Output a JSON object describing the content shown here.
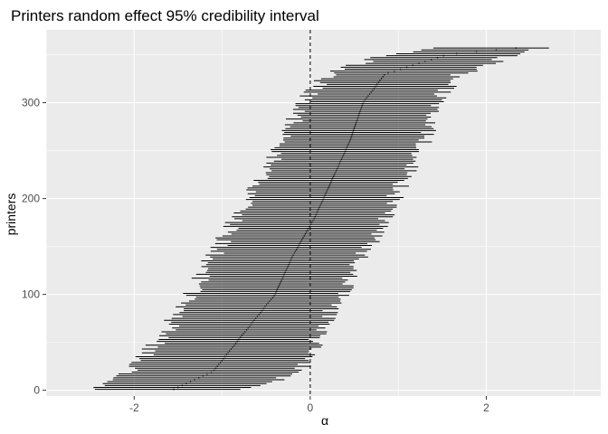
{
  "chart_data": {
    "type": "interval",
    "title": "Printers random effect 95% credibility interval",
    "xlabel": "α",
    "ylabel": "printers",
    "xlim": [
      -3.0,
      3.3
    ],
    "ylim": [
      -6,
      376
    ],
    "x_ticks": [
      -2,
      0,
      2
    ],
    "x_tick_labels": [
      "-2",
      "0",
      "2"
    ],
    "y_ticks": [
      0,
      100,
      200,
      300
    ],
    "y_tick_labels": [
      "0",
      "100",
      "200",
      "300"
    ],
    "reference_line": {
      "x": 0,
      "style": "dashed"
    },
    "grid": true,
    "background": "#ebebeb",
    "grid_color": "#ffffff",
    "mark_color": "#000000",
    "series": [
      {
        "n": 358,
        "intervals": [
          {
            "y": 1,
            "lower": -2.5,
            "estimate": -1.55,
            "upper": -0.7
          },
          {
            "y": 20,
            "lower": -2.05,
            "estimate": -1.1,
            "upper": -0.1
          },
          {
            "y": 60,
            "lower": -1.65,
            "estimate": -0.75,
            "upper": 0.1
          },
          {
            "y": 100,
            "lower": -1.35,
            "estimate": -0.4,
            "upper": 0.35
          },
          {
            "y": 140,
            "lower": -1.1,
            "estimate": -0.2,
            "upper": 0.6
          },
          {
            "y": 180,
            "lower": -0.85,
            "estimate": 0.05,
            "upper": 0.85
          },
          {
            "y": 220,
            "lower": -0.55,
            "estimate": 0.25,
            "upper": 1.05
          },
          {
            "y": 260,
            "lower": -0.3,
            "estimate": 0.45,
            "upper": 1.3
          },
          {
            "y": 300,
            "lower": -0.1,
            "estimate": 0.6,
            "upper": 1.4
          },
          {
            "y": 330,
            "lower": 0.2,
            "estimate": 0.85,
            "upper": 1.7
          },
          {
            "y": 350,
            "lower": 0.85,
            "estimate": 1.55,
            "upper": 2.3
          },
          {
            "y": 358,
            "lower": 1.55,
            "estimate": 2.45,
            "upper": 2.75
          }
        ]
      }
    ]
  }
}
